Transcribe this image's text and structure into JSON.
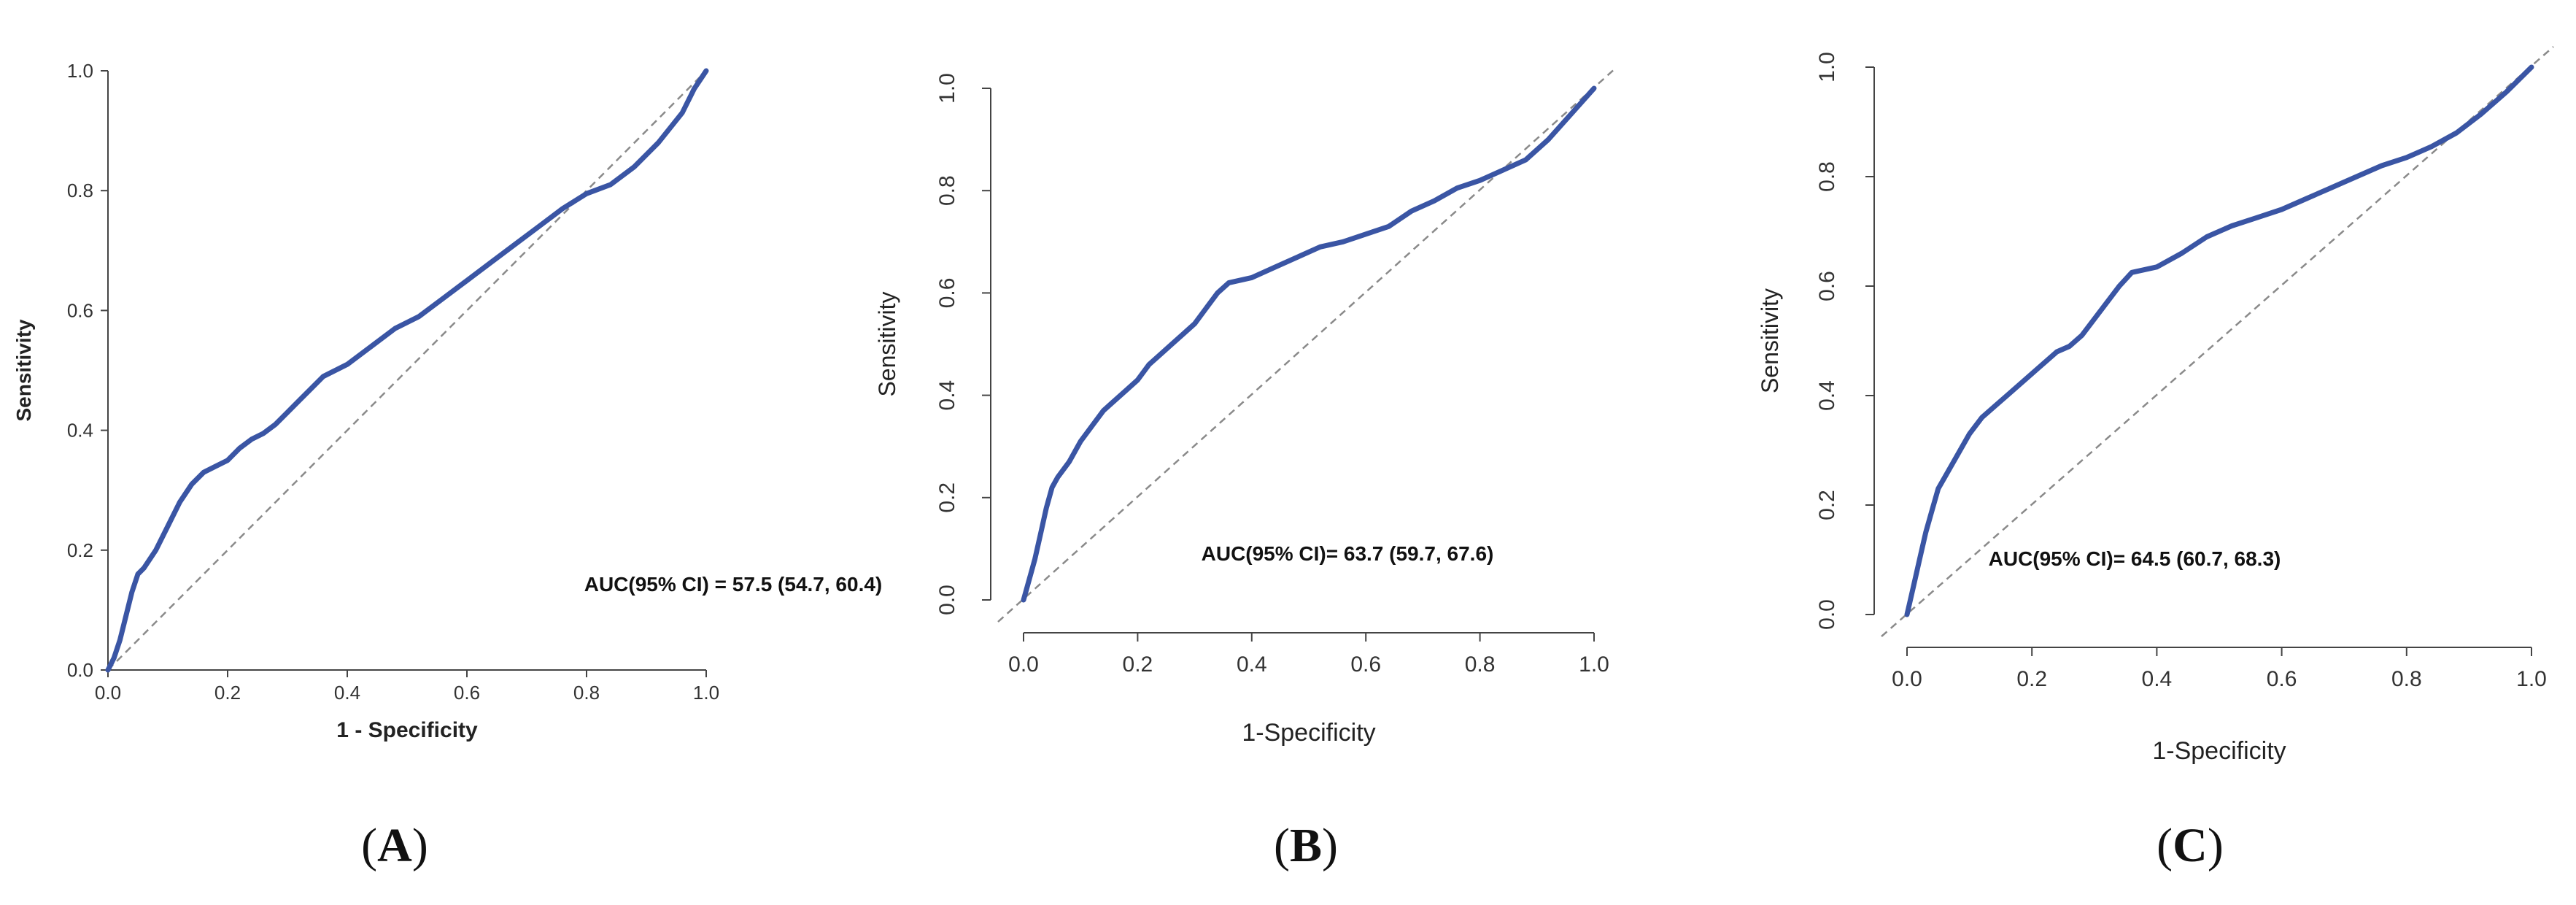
{
  "chart_data": [
    {
      "type": "line",
      "xlabel": "1 - Specificity",
      "ylabel": "Sensitivity",
      "xlim": [
        0,
        1
      ],
      "ylim": [
        0,
        1
      ],
      "xticks": [
        "0.0",
        "0.2",
        "0.4",
        "0.6",
        "0.8",
        "1.0"
      ],
      "yticks": [
        "0.0",
        "0.2",
        "0.4",
        "0.6",
        "0.8",
        "1.0"
      ],
      "annotation": "AUC(95% CI) = 57.5 (54.7, 60.4)",
      "panel_label": "A",
      "grid": false,
      "colors": {
        "roc": "#3a55a4",
        "reference": "#8a8a8a"
      },
      "series": [
        {
          "x": [
            0,
            0.01,
            0.02,
            0.03,
            0.04,
            0.05,
            0.06,
            0.08,
            0.1,
            0.12,
            0.14,
            0.16,
            0.18,
            0.2,
            0.22,
            0.24,
            0.26,
            0.28,
            0.3,
            0.32,
            0.34,
            0.36,
            0.38,
            0.4,
            0.44,
            0.48,
            0.52,
            0.56,
            0.6,
            0.64,
            0.68,
            0.72,
            0.76,
            0.8,
            0.84,
            0.88,
            0.92,
            0.96,
            0.98,
            1.0
          ],
          "y": [
            0,
            0.02,
            0.05,
            0.09,
            0.13,
            0.16,
            0.17,
            0.2,
            0.24,
            0.28,
            0.31,
            0.33,
            0.34,
            0.35,
            0.37,
            0.385,
            0.395,
            0.41,
            0.43,
            0.45,
            0.47,
            0.49,
            0.5,
            0.51,
            0.54,
            0.57,
            0.59,
            0.62,
            0.65,
            0.68,
            0.71,
            0.74,
            0.77,
            0.795,
            0.81,
            0.84,
            0.88,
            0.93,
            0.97,
            1.0
          ]
        }
      ]
    },
    {
      "type": "line",
      "xlabel": "1-Specificity",
      "ylabel": "Sensitivity",
      "xlim": [
        0,
        1
      ],
      "ylim": [
        0,
        1
      ],
      "xticks": [
        "0.0",
        "0.2",
        "0.4",
        "0.6",
        "0.8",
        "1.0"
      ],
      "yticks": [
        "0.0",
        "0.2",
        "0.4",
        "0.6",
        "0.8",
        "1.0"
      ],
      "annotation": "AUC(95% CI)= 63.7 (59.7, 67.6)",
      "panel_label": "B",
      "grid": false,
      "colors": {
        "roc": "#3a55a4",
        "reference": "#8a8a8a"
      },
      "series": [
        {
          "x": [
            0,
            0.01,
            0.02,
            0.03,
            0.04,
            0.05,
            0.06,
            0.08,
            0.1,
            0.12,
            0.14,
            0.16,
            0.18,
            0.2,
            0.22,
            0.24,
            0.26,
            0.28,
            0.3,
            0.32,
            0.34,
            0.36,
            0.4,
            0.44,
            0.48,
            0.52,
            0.56,
            0.6,
            0.64,
            0.68,
            0.72,
            0.76,
            0.8,
            0.84,
            0.88,
            0.92,
            0.96,
            1.0
          ],
          "y": [
            0,
            0.04,
            0.08,
            0.13,
            0.18,
            0.22,
            0.24,
            0.27,
            0.31,
            0.34,
            0.37,
            0.39,
            0.41,
            0.43,
            0.46,
            0.48,
            0.5,
            0.52,
            0.54,
            0.57,
            0.6,
            0.62,
            0.63,
            0.65,
            0.67,
            0.69,
            0.7,
            0.715,
            0.73,
            0.76,
            0.78,
            0.805,
            0.82,
            0.84,
            0.86,
            0.9,
            0.95,
            1.0
          ]
        }
      ]
    },
    {
      "type": "line",
      "xlabel": "1-Specificity",
      "ylabel": "Sensitivity",
      "xlim": [
        0,
        1
      ],
      "ylim": [
        0,
        1
      ],
      "xticks": [
        "0.0",
        "0.2",
        "0.4",
        "0.6",
        "0.8",
        "1.0"
      ],
      "yticks": [
        "0.0",
        "0.2",
        "0.4",
        "0.6",
        "0.8",
        "1.0"
      ],
      "annotation": "AUC(95% CI)= 64.5 (60.7, 68.3)",
      "panel_label": "C",
      "grid": false,
      "colors": {
        "roc": "#3a55a4",
        "reference": "#8a8a8a"
      },
      "series": [
        {
          "x": [
            0,
            0.01,
            0.02,
            0.03,
            0.04,
            0.05,
            0.06,
            0.08,
            0.1,
            0.12,
            0.14,
            0.16,
            0.18,
            0.2,
            0.22,
            0.24,
            0.26,
            0.28,
            0.3,
            0.32,
            0.34,
            0.36,
            0.4,
            0.44,
            0.48,
            0.52,
            0.56,
            0.6,
            0.64,
            0.68,
            0.72,
            0.76,
            0.8,
            0.84,
            0.88,
            0.92,
            0.96,
            1.0
          ],
          "y": [
            0,
            0.05,
            0.1,
            0.15,
            0.19,
            0.23,
            0.25,
            0.29,
            0.33,
            0.36,
            0.38,
            0.4,
            0.42,
            0.44,
            0.46,
            0.48,
            0.49,
            0.51,
            0.54,
            0.57,
            0.6,
            0.625,
            0.635,
            0.66,
            0.69,
            0.71,
            0.725,
            0.74,
            0.76,
            0.78,
            0.8,
            0.82,
            0.835,
            0.855,
            0.88,
            0.915,
            0.955,
            1.0
          ]
        }
      ]
    }
  ]
}
